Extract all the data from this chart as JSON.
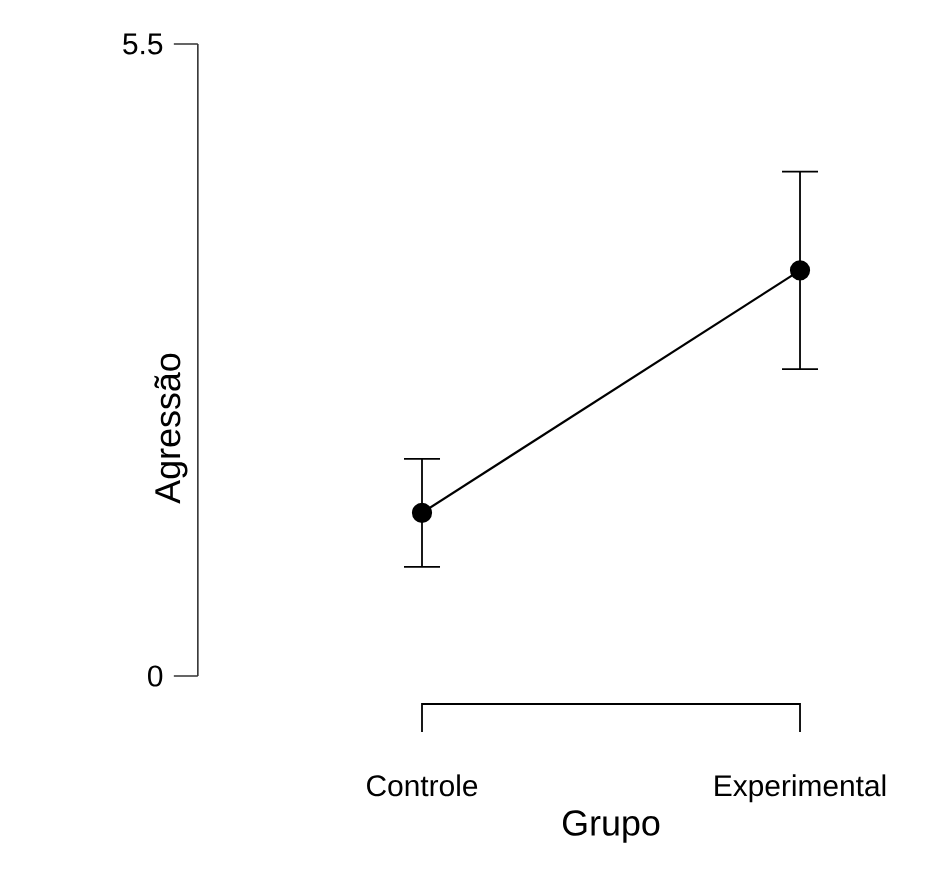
{
  "chart_data": {
    "type": "line",
    "xlabel": "Grupo",
    "ylabel": "Agressão",
    "categories": [
      "Controle",
      "Experimental"
    ],
    "values": [
      1.42,
      3.53
    ],
    "errors": [
      0.47,
      0.86
    ],
    "color": "#000000",
    "marker": "circle",
    "line_style": "solid",
    "ylim": [
      0,
      5.5
    ],
    "yticks": [
      0,
      5.5
    ]
  }
}
